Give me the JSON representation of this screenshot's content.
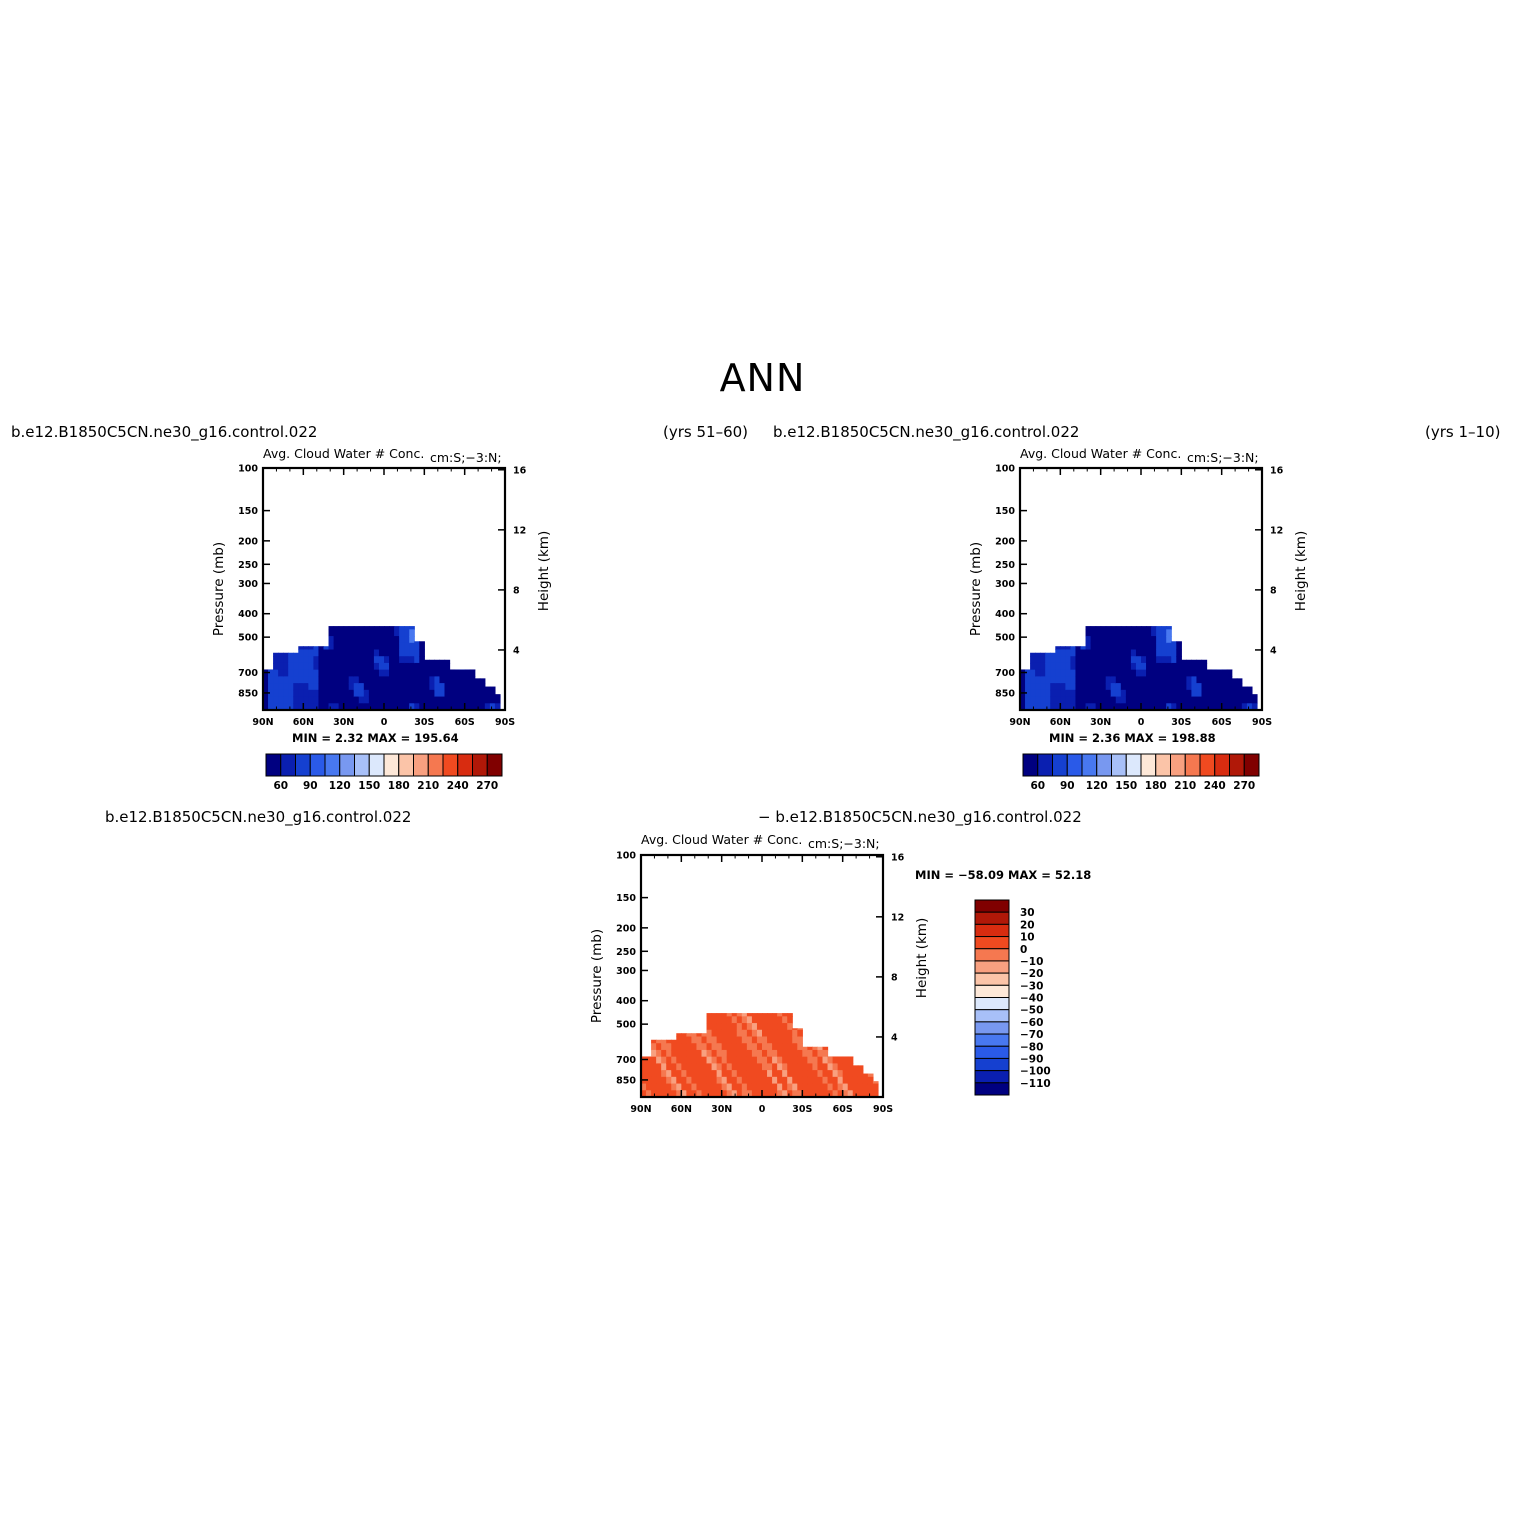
{
  "title": "ANN",
  "panels": [
    {
      "case_label": "b.e12.B1850C5CN.ne30_g16.control.022",
      "period_label": "(yrs 51–60)",
      "field_label": "Avg. Cloud Water # Conc.",
      "units_label": "cm:S;−3:N;",
      "min_max_label": "MIN =     2.32   MAX =  195.64",
      "colorbar_ticks": [
        "60",
        "90",
        "120",
        "150",
        "180",
        "210",
        "240",
        "270"
      ]
    },
    {
      "case_label": "b.e12.B1850C5CN.ne30_g16.control.022",
      "period_label": "(yrs 1–10)",
      "field_label": "Avg. Cloud Water # Conc.",
      "units_label": "cm:S;−3:N;",
      "min_max_label": "MIN =     2.36   MAX =  198.88",
      "colorbar_ticks": [
        "60",
        "90",
        "120",
        "150",
        "180",
        "210",
        "240",
        "270"
      ]
    },
    {
      "case_label": "b.e12.B1850C5CN.ne30_g16.control.022",
      "period_label": "− b.e12.B1850C5CN.ne30_g16.control.022",
      "field_label": "Avg. Cloud Water # Conc.",
      "units_label": "cm:S;−3:N;",
      "min_max_label": "MIN = −58.09   MAX =   52.18",
      "colorbar_ticks": [
        "30",
        "20",
        "10",
        "0",
        "−10",
        "−20",
        "−30",
        "−40",
        "−50",
        "−60",
        "−70",
        "−80",
        "−90",
        "−100",
        "−110"
      ]
    }
  ],
  "chart_data": [
    {
      "type": "heatmap",
      "ylabel": "Pressure (mb)",
      "ylabel_right": "Height (km)",
      "x_ticks": [
        "90N",
        "60N",
        "30N",
        "0",
        "30S",
        "60S",
        "90S"
      ],
      "y_ticks": [
        "100",
        "150",
        "200",
        "250",
        "300",
        "400",
        "500",
        "700",
        "850"
      ],
      "y_ticks_right": [
        "16",
        "12",
        "8",
        "4"
      ],
      "ylim": [
        100,
        1000
      ],
      "y_scale": "log",
      "min": 2.32,
      "max": 195.64,
      "colormap": [
        "#000080",
        "#0a1fb0",
        "#1540d0",
        "#2a5ae8",
        "#4878f0",
        "#7898f0",
        "#a8c0f8",
        "#dce8fc",
        "#fde8d8",
        "#fbc4a8",
        "#f8a080",
        "#f57850",
        "#f04a20",
        "#d82c10",
        "#b01808",
        "#800000"
      ],
      "levels": [
        60,
        90,
        120,
        150,
        180,
        210,
        240,
        270
      ]
    },
    {
      "type": "heatmap",
      "ylabel": "Pressure (mb)",
      "ylabel_right": "Height (km)",
      "x_ticks": [
        "90N",
        "60N",
        "30N",
        "0",
        "30S",
        "60S",
        "90S"
      ],
      "y_ticks": [
        "100",
        "150",
        "200",
        "250",
        "300",
        "400",
        "500",
        "700",
        "850"
      ],
      "y_ticks_right": [
        "16",
        "12",
        "8",
        "4"
      ],
      "ylim": [
        100,
        1000
      ],
      "y_scale": "log",
      "min": 2.36,
      "max": 198.88,
      "colormap": [
        "#000080",
        "#0a1fb0",
        "#1540d0",
        "#2a5ae8",
        "#4878f0",
        "#7898f0",
        "#a8c0f8",
        "#dce8fc",
        "#fde8d8",
        "#fbc4a8",
        "#f8a080",
        "#f57850",
        "#f04a20",
        "#d82c10",
        "#b01808",
        "#800000"
      ],
      "levels": [
        60,
        90,
        120,
        150,
        180,
        210,
        240,
        270
      ]
    },
    {
      "type": "heatmap",
      "ylabel": "Pressure (mb)",
      "ylabel_right": "Height (km)",
      "x_ticks": [
        "90N",
        "60N",
        "30N",
        "0",
        "30S",
        "60S",
        "90S"
      ],
      "y_ticks": [
        "100",
        "150",
        "200",
        "250",
        "300",
        "400",
        "500",
        "700",
        "850"
      ],
      "y_ticks_right": [
        "16",
        "12",
        "8",
        "4"
      ],
      "ylim": [
        100,
        1000
      ],
      "y_scale": "log",
      "min": -58.09,
      "max": 52.18,
      "colormap": [
        "#800000",
        "#b01808",
        "#d82c10",
        "#f04a20",
        "#f57850",
        "#f8a080",
        "#fbc4a8",
        "#fde8d8",
        "#dce8fc",
        "#a8c0f8",
        "#7898f0",
        "#4878f0",
        "#2a5ae8",
        "#1540d0",
        "#0a1fb0",
        "#000080"
      ],
      "levels": [
        30,
        20,
        10,
        0,
        -10,
        -20,
        -30,
        -40,
        -50,
        -60,
        -70,
        -80,
        -90,
        -100,
        -110
      ]
    }
  ]
}
